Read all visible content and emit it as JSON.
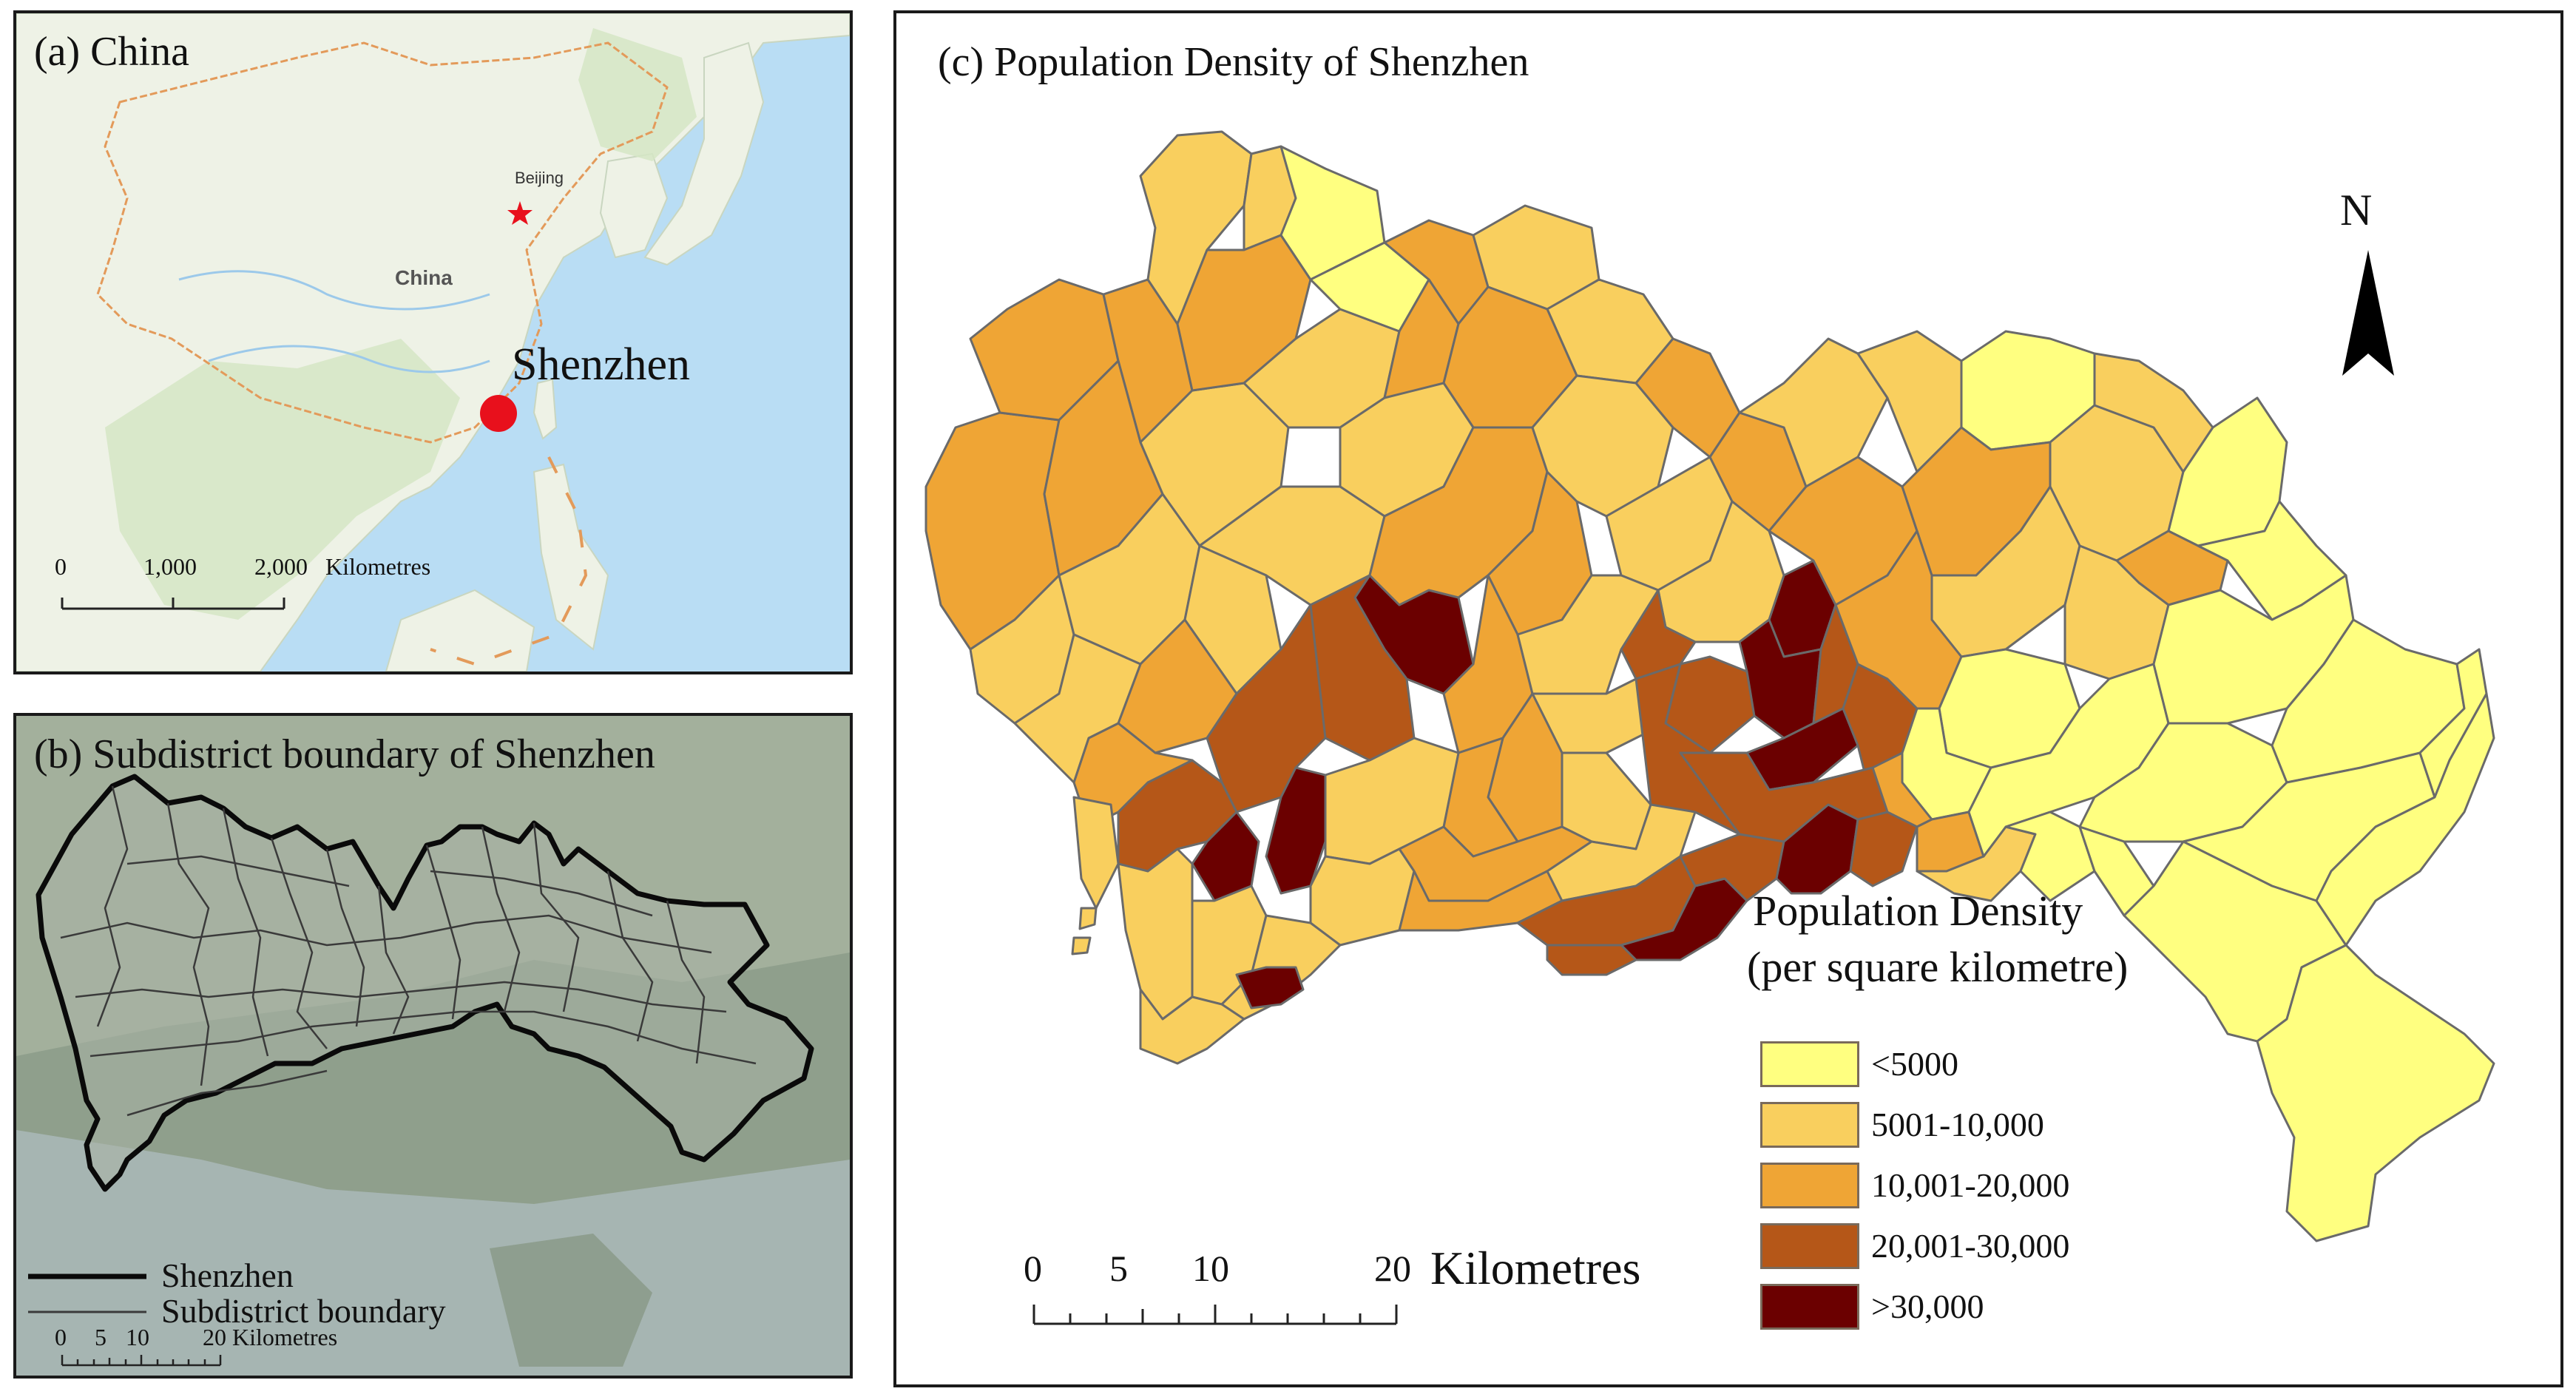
{
  "panel_a": {
    "title": "(a) China",
    "labels": {
      "capital": "Beijing",
      "country": "China",
      "city": "Shenzhen"
    },
    "scale_bar": {
      "ticks": [
        "0",
        "1,000",
        "2,000"
      ],
      "unit": "Kilometres"
    },
    "colors": {
      "sea": "#b9ddf4",
      "land": "#eef2e6",
      "border": "#e39a5a",
      "marker": "#e8101c"
    }
  },
  "panel_b": {
    "title": "(b) Subdistrict boundary of Shenzhen",
    "legend": [
      {
        "label": "Shenzhen",
        "style": "thick"
      },
      {
        "label": "Subdistrict boundary",
        "style": "thin"
      }
    ],
    "scale_bar": {
      "ticks": [
        "0",
        "5",
        "10",
        "20"
      ],
      "unit": "Kilometres"
    }
  },
  "panel_c": {
    "title": "(c) Population Density of Shenzhen",
    "north_label": "N",
    "legend_title_line1": "Population Density",
    "legend_title_line2": "(per square kilometre)",
    "legend": [
      {
        "label": "<5000",
        "color": "#ffff80"
      },
      {
        "label": "5001-10,000",
        "color": "#f9cf5e"
      },
      {
        "label": "10,001-20,000",
        "color": "#efa535"
      },
      {
        "label": "20,001-30,000",
        "color": "#b55718"
      },
      {
        "label": ">30,000",
        "color": "#6b0000"
      }
    ],
    "scale_bar": {
      "ticks": [
        "0",
        "5",
        "10",
        "20"
      ],
      "unit": "Kilometres"
    }
  }
}
